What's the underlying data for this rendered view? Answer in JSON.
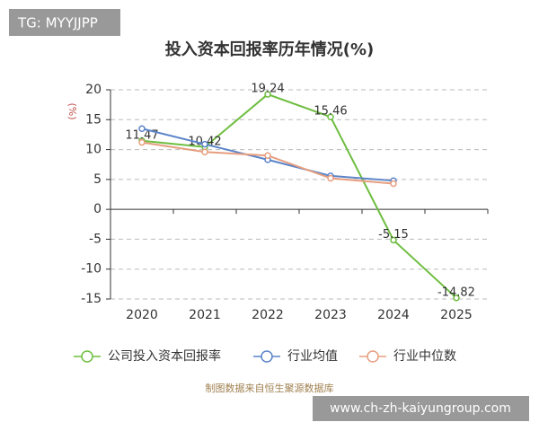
{
  "badge": "TG: MYYJJPP",
  "source": "制图数据来自恒生聚源数据库",
  "watermark": "www.ch-zh-kaiyungroup.com",
  "chart_data": {
    "type": "line",
    "title": "投入资本回报率历年情况(%)",
    "y_label": "(%)",
    "categories": [
      "2020",
      "2021",
      "2022",
      "2023",
      "2024",
      "2025"
    ],
    "series": [
      {
        "name": "公司投入资本回报率",
        "color": "#6dbd3f",
        "values": [
          11.47,
          10.42,
          19.24,
          15.46,
          -5.15,
          -14.82
        ],
        "show_labels": true
      },
      {
        "name": "行业均值",
        "color": "#5b84c9",
        "values": [
          13.5,
          10.9,
          8.3,
          5.6,
          4.8,
          null
        ]
      },
      {
        "name": "行业中位数",
        "color": "#e79e7f",
        "values": [
          11.2,
          9.6,
          9.0,
          5.2,
          4.3,
          null
        ]
      }
    ],
    "ylim": [
      -15,
      20
    ],
    "yticks": [
      -15,
      -10,
      -5,
      0,
      5,
      10,
      15,
      20
    ],
    "grid": true
  }
}
